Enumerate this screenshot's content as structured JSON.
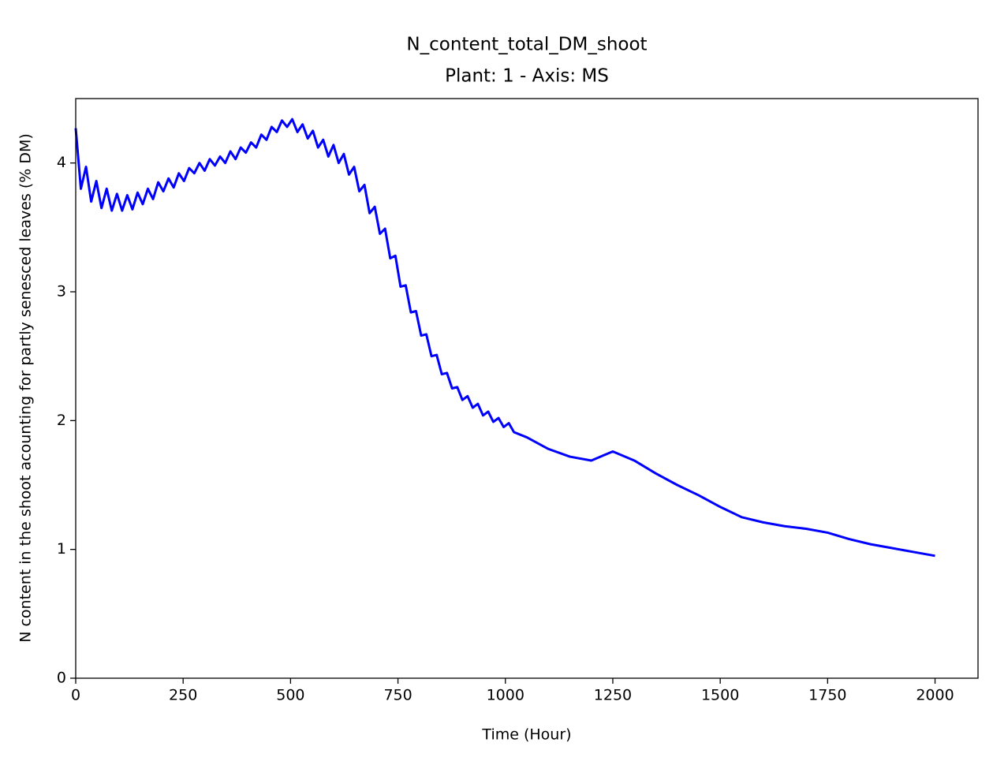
{
  "chart_data": {
    "type": "line",
    "title": "N_content_total_DM_shoot",
    "subtitle": "Plant: 1 - Axis: MS",
    "xlabel": "Time (Hour)",
    "ylabel": "N content in the shoot acounting for partly senesced leaves (% DM)",
    "x": [
      0,
      12,
      24,
      36,
      48,
      60,
      72,
      84,
      96,
      108,
      120,
      132,
      144,
      156,
      168,
      180,
      192,
      204,
      216,
      228,
      240,
      252,
      264,
      276,
      288,
      300,
      312,
      324,
      336,
      348,
      360,
      372,
      384,
      396,
      408,
      420,
      432,
      444,
      456,
      468,
      480,
      492,
      504,
      516,
      528,
      540,
      552,
      564,
      576,
      588,
      600,
      612,
      624,
      636,
      648,
      660,
      672,
      684,
      696,
      708,
      720,
      732,
      744,
      756,
      768,
      780,
      792,
      804,
      816,
      828,
      840,
      852,
      864,
      876,
      888,
      900,
      912,
      924,
      936,
      948,
      960,
      972,
      984,
      996,
      1008,
      1020,
      1050,
      1100,
      1150,
      1200,
      1250,
      1300,
      1350,
      1400,
      1450,
      1500,
      1550,
      1600,
      1650,
      1700,
      1750,
      1800,
      1850,
      1900,
      1950,
      2000
    ],
    "series": [
      {
        "name": "N_content_total_DM_shoot",
        "color": "#0000ff",
        "values": [
          4.27,
          3.8,
          3.97,
          3.7,
          3.86,
          3.65,
          3.8,
          3.63,
          3.76,
          3.63,
          3.75,
          3.64,
          3.77,
          3.68,
          3.8,
          3.72,
          3.85,
          3.78,
          3.88,
          3.81,
          3.92,
          3.86,
          3.96,
          3.92,
          4.0,
          3.94,
          4.03,
          3.98,
          4.05,
          4.0,
          4.09,
          4.03,
          4.12,
          4.08,
          4.16,
          4.12,
          4.22,
          4.18,
          4.28,
          4.24,
          4.33,
          4.28,
          4.34,
          4.24,
          4.3,
          4.19,
          4.25,
          4.12,
          4.18,
          4.05,
          4.14,
          4.0,
          4.07,
          3.91,
          3.97,
          3.78,
          3.83,
          3.61,
          3.66,
          3.45,
          3.49,
          3.26,
          3.28,
          3.04,
          3.05,
          2.84,
          2.85,
          2.66,
          2.67,
          2.5,
          2.51,
          2.36,
          2.37,
          2.25,
          2.26,
          2.16,
          2.19,
          2.1,
          2.13,
          2.04,
          2.07,
          1.99,
          2.02,
          1.95,
          1.98,
          1.91,
          1.87,
          1.78,
          1.72,
          1.69,
          1.76,
          1.69,
          1.59,
          1.5,
          1.42,
          1.33,
          1.25,
          1.21,
          1.18,
          1.16,
          1.13,
          1.08,
          1.04,
          1.01,
          0.98,
          0.95
        ]
      }
    ],
    "xlim": [
      0,
      2100
    ],
    "ylim": [
      0,
      4.5
    ],
    "xticks": [
      0,
      250,
      500,
      750,
      1000,
      1250,
      1500,
      1750,
      2000
    ],
    "yticks": [
      0,
      1,
      2,
      3,
      4
    ]
  }
}
